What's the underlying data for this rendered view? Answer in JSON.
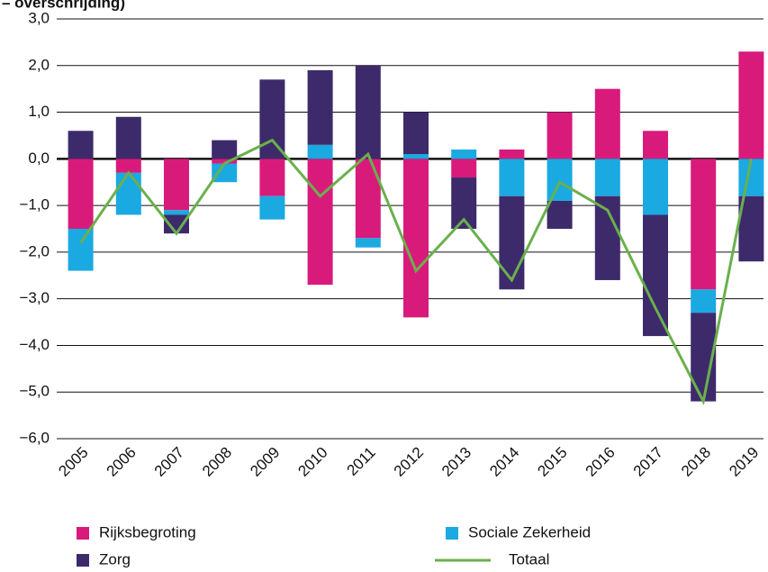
{
  "chart_data": {
    "type": "bar",
    "subtitle": "– overschrijding)",
    "categories": [
      "2005",
      "2006",
      "2007",
      "2008",
      "2009",
      "2010",
      "2011",
      "2012",
      "2013",
      "2014",
      "2015",
      "2016",
      "2017",
      "2018",
      "2019"
    ],
    "series": [
      {
        "name": "Rijksbegroting",
        "color": "#d81b7b",
        "values": [
          -1.5,
          -0.3,
          -1.1,
          -0.1,
          -0.8,
          -2.7,
          -1.7,
          -3.4,
          -0.4,
          0.2,
          1.0,
          1.5,
          0.6,
          -2.8,
          2.3
        ]
      },
      {
        "name": "Sociale Zekerheid",
        "color": "#1ba9e1",
        "values": [
          -0.9,
          -0.9,
          -0.1,
          -0.4,
          -0.5,
          0.3,
          -0.2,
          0.1,
          0.2,
          -0.8,
          -0.9,
          -0.8,
          -1.2,
          -0.5,
          -0.8
        ]
      },
      {
        "name": "Zorg",
        "color": "#3d2a6b",
        "values": [
          0.6,
          0.9,
          -0.4,
          0.4,
          1.7,
          1.6,
          2.0,
          0.9,
          -1.1,
          -2.0,
          -0.6,
          -1.8,
          -2.6,
          -1.9,
          -1.4
        ]
      },
      {
        "name": "Totaal",
        "type": "line",
        "color": "#6ab04c",
        "values": [
          -1.8,
          -0.3,
          -1.6,
          -0.1,
          0.4,
          -0.8,
          0.1,
          -2.4,
          -1.3,
          -2.6,
          -0.5,
          -1.1,
          -3.2,
          -5.2,
          0.0
        ]
      }
    ],
    "ylim": [
      -6,
      3
    ],
    "yticks": [
      {
        "value": 3,
        "label": "3,0"
      },
      {
        "value": 2,
        "label": "2,0"
      },
      {
        "value": 1,
        "label": "1,0"
      },
      {
        "value": 0,
        "label": "0,0"
      },
      {
        "value": -1,
        "label": "−1,0"
      },
      {
        "value": -2,
        "label": "−2,0"
      },
      {
        "value": -3,
        "label": "−3,0"
      },
      {
        "value": -4,
        "label": "−4,0"
      },
      {
        "value": -5,
        "label": "−5,0"
      },
      {
        "value": -6,
        "label": "−6,0"
      }
    ],
    "grid": true
  }
}
